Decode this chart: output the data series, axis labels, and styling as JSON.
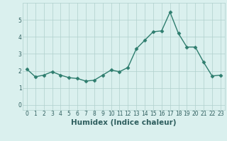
{
  "x": [
    0,
    1,
    2,
    3,
    4,
    5,
    6,
    7,
    8,
    9,
    10,
    11,
    12,
    13,
    14,
    15,
    16,
    17,
    18,
    19,
    20,
    21,
    22,
    23
  ],
  "y": [
    2.1,
    1.65,
    1.75,
    1.95,
    1.75,
    1.6,
    1.55,
    1.4,
    1.45,
    1.75,
    2.05,
    1.95,
    2.2,
    3.3,
    3.8,
    4.3,
    4.35,
    5.45,
    4.2,
    3.4,
    3.4,
    2.5,
    1.7,
    1.75
  ],
  "line_color": "#2e7d6e",
  "marker": "D",
  "marker_size": 2.5,
  "bg_color": "#daf0ee",
  "grid_color": "#b0d0cc",
  "xlabel": "Humidex (Indice chaleur)",
  "xlim": [
    -0.5,
    23.5
  ],
  "ylim": [
    -0.3,
    6.0
  ],
  "yticks": [
    0,
    1,
    2,
    3,
    4,
    5
  ],
  "xticks": [
    0,
    1,
    2,
    3,
    4,
    5,
    6,
    7,
    8,
    9,
    10,
    11,
    12,
    13,
    14,
    15,
    16,
    17,
    18,
    19,
    20,
    21,
    22,
    23
  ],
  "tick_label_size": 5.5,
  "xlabel_size": 7.5,
  "linewidth": 1.0,
  "text_color": "#2e5e5e"
}
